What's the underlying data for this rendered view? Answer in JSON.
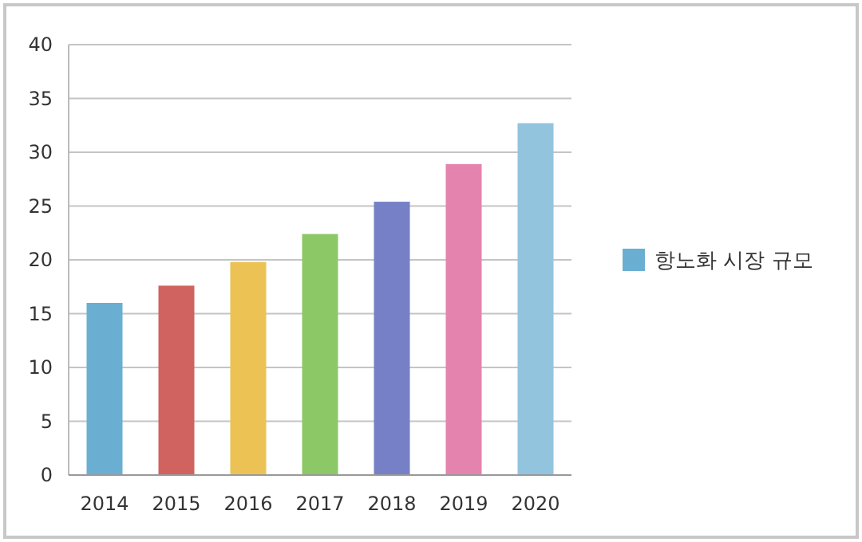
{
  "chart_data": {
    "type": "bar",
    "categories": [
      "2014",
      "2015",
      "2016",
      "2017",
      "2018",
      "2019",
      "2020"
    ],
    "series": [
      {
        "name": "항노화 시장 규모",
        "color": "#6aafd2",
        "colors": [
          "#6aafd2",
          "#d0625f",
          "#ecc254",
          "#8cc866",
          "#7580c6",
          "#e483ad",
          "#92c4de"
        ],
        "values": [
          16.0,
          17.6,
          19.8,
          22.4,
          25.4,
          28.9,
          32.7
        ]
      }
    ],
    "ylim": [
      0,
      40
    ],
    "yticks": [
      0,
      5,
      10,
      15,
      20,
      25,
      30,
      35,
      40
    ],
    "grid": "y",
    "legend": "right"
  }
}
